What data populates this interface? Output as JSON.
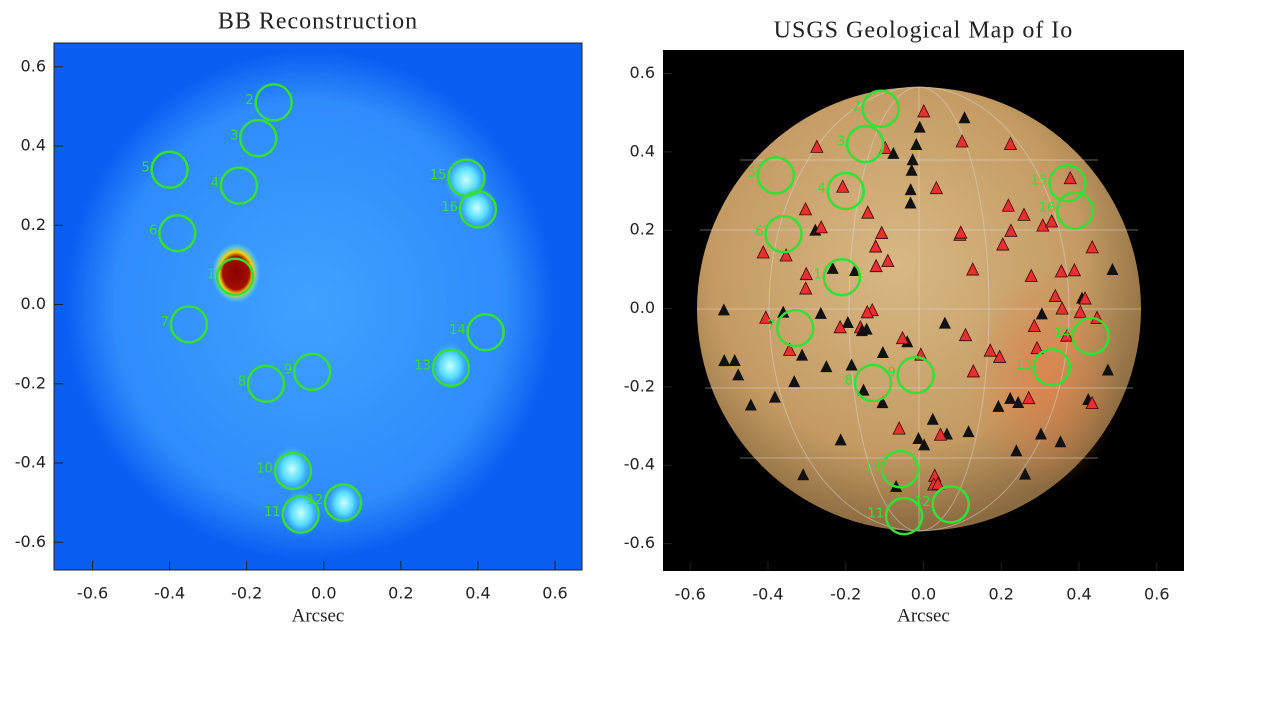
{
  "chart_data": [
    {
      "type": "scatter",
      "title": "BB Reconstruction",
      "x_label": "Arcsec",
      "color": "#33e033",
      "labels": [
        "1",
        "2",
        "3",
        "4",
        "5",
        "6",
        "7",
        "8",
        "9",
        "10",
        "11",
        "12",
        "13",
        "14",
        "15",
        "16"
      ],
      "x": [
        -0.23,
        -0.13,
        -0.17,
        -0.22,
        -0.4,
        -0.38,
        -0.35,
        -0.15,
        -0.03,
        -0.08,
        -0.06,
        0.05,
        0.33,
        0.42,
        0.37,
        0.4
      ],
      "y": [
        0.07,
        0.51,
        0.42,
        0.3,
        0.34,
        0.18,
        -0.05,
        -0.2,
        -0.17,
        -0.42,
        -0.53,
        -0.5,
        -0.16,
        -0.07,
        0.32,
        0.24
      ],
      "xlim": [
        -0.7,
        0.67
      ],
      "ylim": [
        -0.67,
        0.66
      ],
      "xticks": [
        -0.6,
        -0.4,
        -0.2,
        {
          "value": 0,
          "label": "0.0"
        },
        0.2,
        0.4,
        0.6
      ],
      "yticks": [
        -0.6,
        -0.4,
        -0.2,
        {
          "value": 0,
          "label": "0.0"
        },
        0.2,
        0.4,
        0.6
      ]
    },
    {
      "type": "scatter",
      "title": "USGS Geological Map of Io",
      "x_label": "Arcsec",
      "color": "#33e033",
      "labels": [
        "1",
        "2",
        "3",
        "4",
        "5",
        "6",
        "7",
        "8",
        "9",
        "10",
        "11",
        "12",
        "13",
        "14",
        "15",
        "16"
      ],
      "x": [
        -0.21,
        -0.11,
        -0.15,
        -0.2,
        -0.38,
        -0.36,
        -0.33,
        -0.13,
        -0.02,
        -0.06,
        -0.05,
        0.07,
        0.33,
        0.43,
        0.37,
        0.39
      ],
      "y": [
        0.08,
        0.51,
        0.42,
        0.3,
        0.34,
        0.19,
        -0.05,
        -0.19,
        -0.17,
        -0.41,
        -0.53,
        -0.5,
        -0.15,
        -0.07,
        0.32,
        0.25
      ],
      "xlim": [
        -0.67,
        0.67
      ],
      "ylim": [
        -0.67,
        0.66
      ],
      "xticks": [
        -0.6,
        -0.4,
        -0.2,
        {
          "value": 0,
          "label": "0.0"
        },
        0.2,
        0.4,
        0.6
      ],
      "yticks": [
        -0.6,
        -0.4,
        -0.2,
        {
          "value": 0,
          "label": "0.0"
        },
        0.2,
        0.4,
        0.6
      ]
    }
  ]
}
